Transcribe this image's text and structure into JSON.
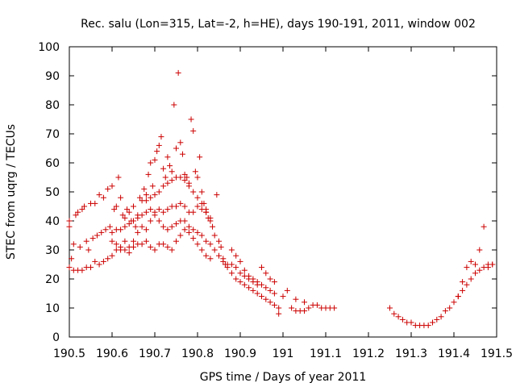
{
  "chart_data": {
    "type": "scatter",
    "title": "Rec. salu (Lon=315, Lat=-2, h=HE), days 190-191, 2011, window 002",
    "xlabel": "GPS time / Days of year 2011",
    "ylabel": "STEC from uqrg / TECUs",
    "xlim": [
      190.5,
      191.5
    ],
    "ylim": [
      0,
      100
    ],
    "x_ticks": [
      190.5,
      190.6,
      190.7,
      190.8,
      190.9,
      191.0,
      191.1,
      191.2,
      191.3,
      191.4,
      191.5
    ],
    "x_tick_labels": [
      "190.5",
      "190.6",
      "190.7",
      "190.8",
      "190.9",
      "191",
      "191.1",
      "191.2",
      "191.3",
      "191.4",
      "191.5"
    ],
    "y_ticks": [
      0,
      10,
      20,
      30,
      40,
      50,
      60,
      70,
      80,
      90,
      100
    ],
    "y_tick_labels": [
      "0",
      "10",
      "20",
      "30",
      "40",
      "50",
      "60",
      "70",
      "80",
      "90",
      "100"
    ],
    "grid": false,
    "marker": "+",
    "marker_color": "#cc0000",
    "series": [
      {
        "points": [
          [
            190.5,
            38
          ],
          [
            190.5,
            40
          ],
          [
            190.505,
            27
          ],
          [
            190.51,
            32
          ],
          [
            190.515,
            42
          ],
          [
            190.52,
            43
          ],
          [
            190.525,
            31
          ],
          [
            190.53,
            44
          ],
          [
            190.535,
            45
          ],
          [
            190.54,
            33
          ],
          [
            190.545,
            30
          ],
          [
            190.55,
            46
          ],
          [
            190.555,
            34
          ],
          [
            190.56,
            46
          ],
          [
            190.565,
            35
          ],
          [
            190.57,
            49
          ],
          [
            190.575,
            36
          ],
          [
            190.58,
            48
          ],
          [
            190.585,
            37
          ],
          [
            190.59,
            51
          ],
          [
            190.595,
            38
          ],
          [
            190.6,
            52
          ],
          [
            190.605,
            44
          ],
          [
            190.61,
            45
          ],
          [
            190.615,
            55
          ],
          [
            190.62,
            48
          ],
          [
            190.625,
            42
          ],
          [
            190.63,
            41
          ],
          [
            190.635,
            44
          ],
          [
            190.64,
            43
          ],
          [
            190.645,
            40
          ],
          [
            190.65,
            45
          ],
          [
            190.655,
            38
          ],
          [
            190.66,
            42
          ],
          [
            190.665,
            48
          ],
          [
            190.67,
            47
          ],
          [
            190.675,
            51
          ],
          [
            190.68,
            49
          ],
          [
            190.685,
            56
          ],
          [
            190.69,
            60
          ],
          [
            190.695,
            52
          ],
          [
            190.7,
            61
          ],
          [
            190.705,
            64
          ],
          [
            190.71,
            66
          ],
          [
            190.715,
            69
          ],
          [
            190.72,
            58
          ],
          [
            190.725,
            55
          ],
          [
            190.73,
            62
          ],
          [
            190.735,
            59
          ],
          [
            190.74,
            57
          ],
          [
            190.745,
            80
          ],
          [
            190.75,
            65
          ],
          [
            190.755,
            91
          ],
          [
            190.76,
            67
          ],
          [
            190.765,
            63
          ],
          [
            190.77,
            56
          ],
          [
            190.775,
            55
          ],
          [
            190.78,
            53
          ],
          [
            190.785,
            75
          ],
          [
            190.79,
            71
          ],
          [
            190.795,
            57
          ],
          [
            190.8,
            55
          ],
          [
            190.805,
            62
          ],
          [
            190.81,
            50
          ],
          [
            190.815,
            46
          ],
          [
            190.82,
            43
          ],
          [
            190.825,
            41
          ],
          [
            190.83,
            40
          ],
          [
            190.835,
            38
          ],
          [
            190.84,
            35
          ],
          [
            190.845,
            49
          ],
          [
            190.85,
            33
          ],
          [
            190.855,
            31
          ],
          [
            190.86,
            27
          ],
          [
            190.865,
            25
          ],
          [
            190.87,
            24
          ],
          [
            190.5,
            24
          ],
          [
            190.51,
            23
          ],
          [
            190.52,
            23
          ],
          [
            190.53,
            23
          ],
          [
            190.54,
            24
          ],
          [
            190.55,
            24
          ],
          [
            190.56,
            26
          ],
          [
            190.57,
            25
          ],
          [
            190.58,
            26
          ],
          [
            190.59,
            27
          ],
          [
            190.6,
            28
          ],
          [
            190.61,
            30
          ],
          [
            190.62,
            31
          ],
          [
            190.63,
            33
          ],
          [
            190.64,
            31
          ],
          [
            190.65,
            33
          ],
          [
            190.66,
            36
          ],
          [
            190.67,
            38
          ],
          [
            190.68,
            37
          ],
          [
            190.69,
            40
          ],
          [
            190.7,
            42
          ],
          [
            190.71,
            44
          ],
          [
            190.72,
            43
          ],
          [
            190.73,
            44
          ],
          [
            190.74,
            45
          ],
          [
            190.75,
            45
          ],
          [
            190.76,
            46
          ],
          [
            190.77,
            45
          ],
          [
            190.78,
            43
          ],
          [
            190.79,
            43
          ],
          [
            190.8,
            45
          ],
          [
            190.81,
            44
          ],
          [
            190.82,
            43
          ],
          [
            190.83,
            41
          ],
          [
            190.6,
            36
          ],
          [
            190.61,
            37
          ],
          [
            190.62,
            37
          ],
          [
            190.63,
            38
          ],
          [
            190.64,
            39
          ],
          [
            190.65,
            40
          ],
          [
            190.66,
            41
          ],
          [
            190.67,
            42
          ],
          [
            190.68,
            43
          ],
          [
            190.69,
            44
          ],
          [
            190.7,
            43
          ],
          [
            190.71,
            40
          ],
          [
            190.72,
            38
          ],
          [
            190.73,
            37
          ],
          [
            190.74,
            38
          ],
          [
            190.75,
            39
          ],
          [
            190.76,
            40
          ],
          [
            190.77,
            40
          ],
          [
            190.78,
            38
          ],
          [
            190.79,
            37
          ],
          [
            190.8,
            36
          ],
          [
            190.81,
            35
          ],
          [
            190.82,
            33
          ],
          [
            190.83,
            32
          ],
          [
            190.84,
            30
          ],
          [
            190.85,
            28
          ],
          [
            190.6,
            33
          ],
          [
            190.61,
            32
          ],
          [
            190.62,
            30
          ],
          [
            190.63,
            30
          ],
          [
            190.64,
            29
          ],
          [
            190.65,
            31
          ],
          [
            190.66,
            32
          ],
          [
            190.67,
            32
          ],
          [
            190.68,
            33
          ],
          [
            190.69,
            31
          ],
          [
            190.7,
            30
          ],
          [
            190.71,
            32
          ],
          [
            190.72,
            32
          ],
          [
            190.73,
            31
          ],
          [
            190.74,
            30
          ],
          [
            190.75,
            33
          ],
          [
            190.76,
            35
          ],
          [
            190.77,
            37
          ],
          [
            190.78,
            36
          ],
          [
            190.79,
            34
          ],
          [
            190.8,
            32
          ],
          [
            190.81,
            30
          ],
          [
            190.82,
            28
          ],
          [
            190.83,
            27
          ],
          [
            190.68,
            47
          ],
          [
            190.69,
            48
          ],
          [
            190.7,
            49
          ],
          [
            190.71,
            50
          ],
          [
            190.72,
            52
          ],
          [
            190.73,
            53
          ],
          [
            190.74,
            54
          ],
          [
            190.75,
            55
          ],
          [
            190.76,
            55
          ],
          [
            190.77,
            54
          ],
          [
            190.78,
            52
          ],
          [
            190.79,
            50
          ],
          [
            190.8,
            48
          ],
          [
            190.81,
            46
          ],
          [
            190.82,
            44
          ],
          [
            190.86,
            26
          ],
          [
            190.87,
            25
          ],
          [
            190.88,
            25
          ],
          [
            190.89,
            24
          ],
          [
            190.9,
            22
          ],
          [
            190.91,
            21
          ],
          [
            190.92,
            20
          ],
          [
            190.93,
            20
          ],
          [
            190.94,
            19
          ],
          [
            190.95,
            18
          ],
          [
            190.96,
            17
          ],
          [
            190.97,
            16
          ],
          [
            190.98,
            15
          ],
          [
            190.88,
            22
          ],
          [
            190.89,
            20
          ],
          [
            190.9,
            19
          ],
          [
            190.91,
            18
          ],
          [
            190.92,
            17
          ],
          [
            190.93,
            16
          ],
          [
            190.94,
            15
          ],
          [
            190.95,
            14
          ],
          [
            190.96,
            13
          ],
          [
            190.97,
            12
          ],
          [
            190.98,
            11
          ],
          [
            190.99,
            10
          ],
          [
            190.88,
            30
          ],
          [
            190.89,
            28
          ],
          [
            190.9,
            26
          ],
          [
            190.91,
            23
          ],
          [
            190.92,
            21
          ],
          [
            190.93,
            19
          ],
          [
            190.94,
            18
          ],
          [
            190.95,
            24
          ],
          [
            190.96,
            22
          ],
          [
            190.97,
            20
          ],
          [
            190.98,
            19
          ],
          [
            190.99,
            8
          ],
          [
            191.0,
            14
          ],
          [
            191.01,
            16
          ],
          [
            191.02,
            10
          ],
          [
            191.03,
            13
          ],
          [
            191.04,
            9
          ],
          [
            191.05,
            12
          ],
          [
            191.06,
            10
          ],
          [
            191.07,
            11
          ],
          [
            191.08,
            11
          ],
          [
            191.09,
            10
          ],
          [
            191.1,
            10
          ],
          [
            191.11,
            10
          ],
          [
            191.12,
            10
          ],
          [
            191.03,
            9
          ],
          [
            191.05,
            9
          ],
          [
            191.25,
            10
          ],
          [
            191.26,
            8
          ],
          [
            191.27,
            7
          ],
          [
            191.28,
            6
          ],
          [
            191.29,
            5
          ],
          [
            191.3,
            5
          ],
          [
            191.31,
            4
          ],
          [
            191.32,
            4
          ],
          [
            191.33,
            4
          ],
          [
            191.34,
            4
          ],
          [
            191.35,
            5
          ],
          [
            191.36,
            6
          ],
          [
            191.37,
            7
          ],
          [
            191.38,
            9
          ],
          [
            191.39,
            10
          ],
          [
            191.4,
            12
          ],
          [
            191.41,
            14
          ],
          [
            191.42,
            16
          ],
          [
            191.43,
            18
          ],
          [
            191.44,
            20
          ],
          [
            191.45,
            22
          ],
          [
            191.46,
            23
          ],
          [
            191.47,
            24
          ],
          [
            191.48,
            25
          ],
          [
            191.49,
            25
          ],
          [
            191.43,
            24
          ],
          [
            191.44,
            26
          ],
          [
            191.45,
            25
          ],
          [
            191.46,
            30
          ],
          [
            191.47,
            38
          ],
          [
            191.48,
            24
          ],
          [
            191.49,
            25
          ],
          [
            191.41,
            14
          ],
          [
            191.42,
            19
          ]
        ]
      }
    ]
  }
}
